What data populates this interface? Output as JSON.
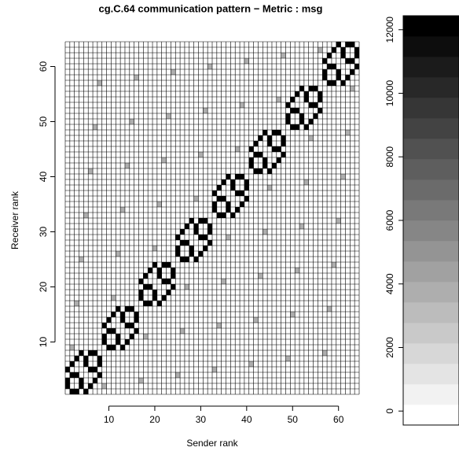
{
  "chart_data": {
    "type": "heatmap",
    "title": "cg.C.64 communication pattern − Metric : msg",
    "x_label": "Sender rank",
    "y_label": "Receiver rank",
    "xlim": [
      0.5,
      64.5
    ],
    "ylim": [
      0.5,
      64.5
    ],
    "xticks": [
      10,
      20,
      30,
      40,
      50,
      60
    ],
    "yticks": [
      10,
      20,
      30,
      40,
      50,
      60
    ],
    "zlim": [
      -440,
      12440
    ],
    "zticks": [
      0,
      2000,
      4000,
      6000,
      8000,
      10000,
      12000
    ],
    "levels": 20,
    "colors": [
      "#ffffff",
      "#000000"
    ],
    "grid": true,
    "cells": [
      [
        1,
        2,
        12000
      ],
      [
        1,
        3,
        12000
      ],
      [
        1,
        5,
        12000
      ],
      [
        2,
        1,
        12000
      ],
      [
        2,
        4,
        12000
      ],
      [
        2,
        6,
        12000
      ],
      [
        3,
        4,
        12000
      ],
      [
        3,
        1,
        12000
      ],
      [
        3,
        7,
        12000
      ],
      [
        4,
        3,
        12000
      ],
      [
        4,
        2,
        12000
      ],
      [
        4,
        8,
        12000
      ],
      [
        5,
        6,
        12000
      ],
      [
        5,
        7,
        12000
      ],
      [
        5,
        1,
        12000
      ],
      [
        6,
        5,
        12000
      ],
      [
        6,
        8,
        12000
      ],
      [
        6,
        2,
        12000
      ],
      [
        7,
        8,
        12000
      ],
      [
        7,
        5,
        12000
      ],
      [
        7,
        3,
        12000
      ],
      [
        8,
        7,
        12000
      ],
      [
        8,
        6,
        12000
      ],
      [
        8,
        4,
        12000
      ],
      [
        9,
        10,
        12000
      ],
      [
        9,
        11,
        12000
      ],
      [
        9,
        13,
        12000
      ],
      [
        10,
        9,
        12000
      ],
      [
        10,
        12,
        12000
      ],
      [
        10,
        14,
        12000
      ],
      [
        11,
        12,
        12000
      ],
      [
        11,
        9,
        12000
      ],
      [
        11,
        15,
        12000
      ],
      [
        12,
        11,
        12000
      ],
      [
        12,
        10,
        12000
      ],
      [
        12,
        16,
        12000
      ],
      [
        13,
        14,
        12000
      ],
      [
        13,
        15,
        12000
      ],
      [
        13,
        9,
        12000
      ],
      [
        14,
        13,
        12000
      ],
      [
        14,
        16,
        12000
      ],
      [
        14,
        10,
        12000
      ],
      [
        15,
        16,
        12000
      ],
      [
        15,
        13,
        12000
      ],
      [
        15,
        11,
        12000
      ],
      [
        16,
        15,
        12000
      ],
      [
        16,
        14,
        12000
      ],
      [
        16,
        12,
        12000
      ],
      [
        17,
        18,
        12000
      ],
      [
        17,
        19,
        12000
      ],
      [
        17,
        21,
        12000
      ],
      [
        18,
        17,
        12000
      ],
      [
        18,
        20,
        12000
      ],
      [
        18,
        22,
        12000
      ],
      [
        19,
        20,
        12000
      ],
      [
        19,
        17,
        12000
      ],
      [
        19,
        23,
        12000
      ],
      [
        20,
        19,
        12000
      ],
      [
        20,
        18,
        12000
      ],
      [
        20,
        24,
        12000
      ],
      [
        21,
        22,
        12000
      ],
      [
        21,
        23,
        12000
      ],
      [
        21,
        17,
        12000
      ],
      [
        22,
        21,
        12000
      ],
      [
        22,
        24,
        12000
      ],
      [
        22,
        18,
        12000
      ],
      [
        23,
        24,
        12000
      ],
      [
        23,
        21,
        12000
      ],
      [
        23,
        19,
        12000
      ],
      [
        24,
        23,
        12000
      ],
      [
        24,
        22,
        12000
      ],
      [
        24,
        20,
        12000
      ],
      [
        25,
        26,
        12000
      ],
      [
        25,
        27,
        12000
      ],
      [
        25,
        29,
        12000
      ],
      [
        26,
        25,
        12000
      ],
      [
        26,
        28,
        12000
      ],
      [
        26,
        30,
        12000
      ],
      [
        27,
        28,
        12000
      ],
      [
        27,
        25,
        12000
      ],
      [
        27,
        31,
        12000
      ],
      [
        28,
        27,
        12000
      ],
      [
        28,
        26,
        12000
      ],
      [
        28,
        32,
        12000
      ],
      [
        29,
        30,
        12000
      ],
      [
        29,
        31,
        12000
      ],
      [
        29,
        25,
        12000
      ],
      [
        30,
        29,
        12000
      ],
      [
        30,
        32,
        12000
      ],
      [
        30,
        26,
        12000
      ],
      [
        31,
        32,
        12000
      ],
      [
        31,
        29,
        12000
      ],
      [
        31,
        27,
        12000
      ],
      [
        32,
        31,
        12000
      ],
      [
        32,
        30,
        12000
      ],
      [
        32,
        28,
        12000
      ],
      [
        33,
        34,
        12000
      ],
      [
        33,
        35,
        12000
      ],
      [
        33,
        37,
        12000
      ],
      [
        34,
        33,
        12000
      ],
      [
        34,
        36,
        12000
      ],
      [
        34,
        38,
        12000
      ],
      [
        35,
        36,
        12000
      ],
      [
        35,
        33,
        12000
      ],
      [
        35,
        39,
        12000
      ],
      [
        36,
        35,
        12000
      ],
      [
        36,
        34,
        12000
      ],
      [
        36,
        40,
        12000
      ],
      [
        37,
        38,
        12000
      ],
      [
        37,
        39,
        12000
      ],
      [
        37,
        33,
        12000
      ],
      [
        38,
        37,
        12000
      ],
      [
        38,
        40,
        12000
      ],
      [
        38,
        34,
        12000
      ],
      [
        39,
        40,
        12000
      ],
      [
        39,
        37,
        12000
      ],
      [
        39,
        35,
        12000
      ],
      [
        40,
        39,
        12000
      ],
      [
        40,
        38,
        12000
      ],
      [
        40,
        36,
        12000
      ],
      [
        41,
        42,
        12000
      ],
      [
        41,
        43,
        12000
      ],
      [
        41,
        45,
        12000
      ],
      [
        42,
        41,
        12000
      ],
      [
        42,
        44,
        12000
      ],
      [
        42,
        46,
        12000
      ],
      [
        43,
        44,
        12000
      ],
      [
        43,
        41,
        12000
      ],
      [
        43,
        47,
        12000
      ],
      [
        44,
        43,
        12000
      ],
      [
        44,
        42,
        12000
      ],
      [
        44,
        48,
        12000
      ],
      [
        45,
        46,
        12000
      ],
      [
        45,
        47,
        12000
      ],
      [
        45,
        41,
        12000
      ],
      [
        46,
        45,
        12000
      ],
      [
        46,
        48,
        12000
      ],
      [
        46,
        42,
        12000
      ],
      [
        47,
        48,
        12000
      ],
      [
        47,
        45,
        12000
      ],
      [
        47,
        43,
        12000
      ],
      [
        48,
        47,
        12000
      ],
      [
        48,
        46,
        12000
      ],
      [
        48,
        44,
        12000
      ],
      [
        49,
        50,
        12000
      ],
      [
        49,
        51,
        12000
      ],
      [
        49,
        53,
        12000
      ],
      [
        50,
        49,
        12000
      ],
      [
        50,
        52,
        12000
      ],
      [
        50,
        54,
        12000
      ],
      [
        51,
        52,
        12000
      ],
      [
        51,
        49,
        12000
      ],
      [
        51,
        55,
        12000
      ],
      [
        52,
        51,
        12000
      ],
      [
        52,
        50,
        12000
      ],
      [
        52,
        56,
        12000
      ],
      [
        53,
        54,
        12000
      ],
      [
        53,
        55,
        12000
      ],
      [
        53,
        49,
        12000
      ],
      [
        54,
        53,
        12000
      ],
      [
        54,
        56,
        12000
      ],
      [
        54,
        50,
        12000
      ],
      [
        55,
        56,
        12000
      ],
      [
        55,
        53,
        12000
      ],
      [
        55,
        51,
        12000
      ],
      [
        56,
        55,
        12000
      ],
      [
        56,
        54,
        12000
      ],
      [
        56,
        52,
        12000
      ],
      [
        57,
        58,
        12000
      ],
      [
        57,
        59,
        12000
      ],
      [
        57,
        61,
        12000
      ],
      [
        58,
        57,
        12000
      ],
      [
        58,
        60,
        12000
      ],
      [
        58,
        62,
        12000
      ],
      [
        59,
        60,
        12000
      ],
      [
        59,
        57,
        12000
      ],
      [
        59,
        63,
        12000
      ],
      [
        60,
        59,
        12000
      ],
      [
        60,
        58,
        12000
      ],
      [
        60,
        64,
        12000
      ],
      [
        61,
        62,
        12000
      ],
      [
        61,
        63,
        12000
      ],
      [
        61,
        57,
        12000
      ],
      [
        62,
        61,
        12000
      ],
      [
        62,
        64,
        12000
      ],
      [
        62,
        58,
        12000
      ],
      [
        63,
        64,
        12000
      ],
      [
        63,
        61,
        12000
      ],
      [
        63,
        59,
        12000
      ],
      [
        64,
        63,
        12000
      ],
      [
        64,
        62,
        12000
      ],
      [
        64,
        60,
        12000
      ],
      [
        2,
        9,
        3500
      ],
      [
        3,
        17,
        3500
      ],
      [
        4,
        25,
        3500
      ],
      [
        5,
        33,
        3500
      ],
      [
        6,
        41,
        3500
      ],
      [
        7,
        49,
        3500
      ],
      [
        8,
        57,
        3500
      ],
      [
        9,
        2,
        3500
      ],
      [
        11,
        18,
        3500
      ],
      [
        12,
        26,
        3500
      ],
      [
        13,
        34,
        3500
      ],
      [
        14,
        42,
        3500
      ],
      [
        15,
        50,
        3500
      ],
      [
        16,
        58,
        3500
      ],
      [
        17,
        3,
        3500
      ],
      [
        18,
        11,
        3500
      ],
      [
        20,
        27,
        3500
      ],
      [
        21,
        35,
        3500
      ],
      [
        22,
        43,
        3500
      ],
      [
        23,
        51,
        3500
      ],
      [
        24,
        59,
        3500
      ],
      [
        25,
        4,
        3500
      ],
      [
        26,
        12,
        3500
      ],
      [
        27,
        20,
        3500
      ],
      [
        29,
        36,
        3500
      ],
      [
        30,
        44,
        3500
      ],
      [
        31,
        52,
        3500
      ],
      [
        32,
        60,
        3500
      ],
      [
        33,
        5,
        3500
      ],
      [
        34,
        13,
        3500
      ],
      [
        35,
        21,
        3500
      ],
      [
        36,
        29,
        3500
      ],
      [
        38,
        45,
        3500
      ],
      [
        39,
        53,
        3500
      ],
      [
        40,
        61,
        3500
      ],
      [
        41,
        6,
        3500
      ],
      [
        42,
        14,
        3500
      ],
      [
        43,
        22,
        3500
      ],
      [
        44,
        30,
        3500
      ],
      [
        45,
        38,
        3500
      ],
      [
        47,
        54,
        3500
      ],
      [
        48,
        62,
        3500
      ],
      [
        49,
        7,
        3500
      ],
      [
        50,
        15,
        3500
      ],
      [
        51,
        23,
        3500
      ],
      [
        52,
        31,
        3500
      ],
      [
        53,
        39,
        3500
      ],
      [
        54,
        47,
        3500
      ],
      [
        56,
        63,
        3500
      ],
      [
        57,
        8,
        3500
      ],
      [
        58,
        16,
        3500
      ],
      [
        59,
        24,
        3500
      ],
      [
        60,
        32,
        3500
      ],
      [
        61,
        40,
        3500
      ],
      [
        62,
        48,
        3500
      ],
      [
        63,
        56,
        3500
      ]
    ]
  }
}
